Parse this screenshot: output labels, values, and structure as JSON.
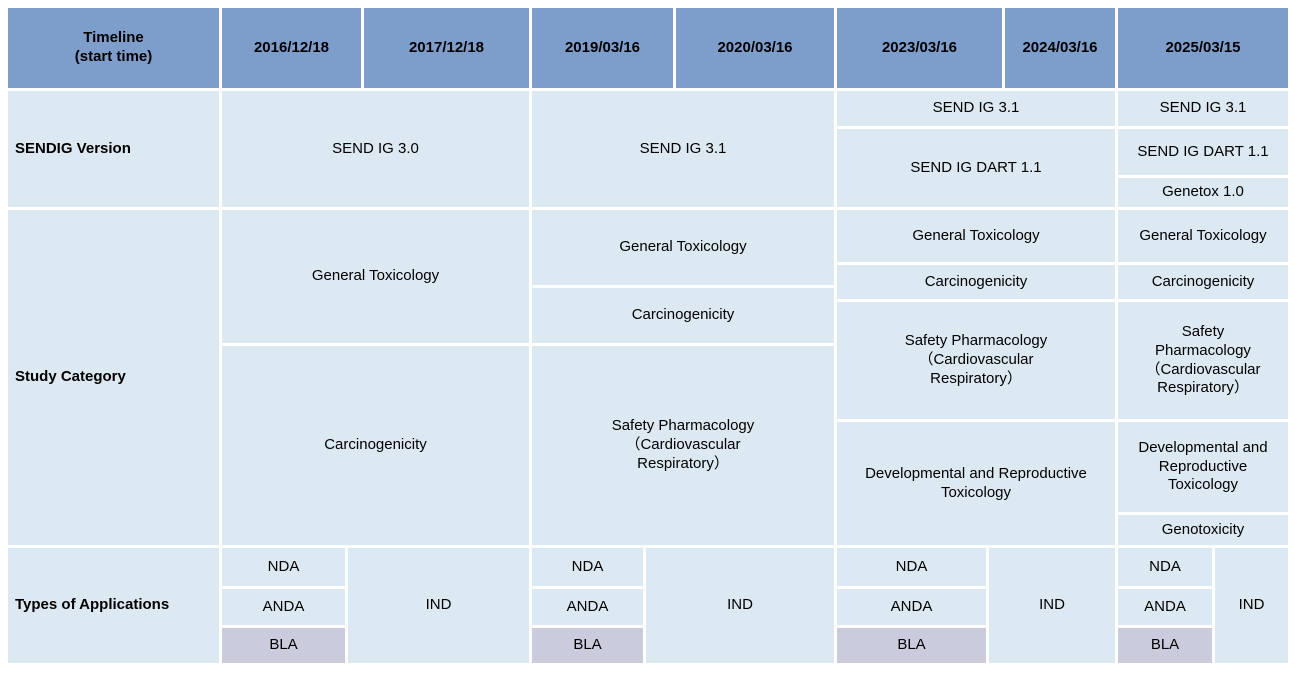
{
  "header": {
    "corner": "Timeline\n(start time)",
    "dates": [
      "2016/12/18",
      "2017/12/18",
      "2019/03/16",
      "2020/03/16",
      "2023/03/16",
      "2024/03/16",
      "2025/03/15"
    ]
  },
  "sendig_version": {
    "label": "SENDIG Version",
    "g2016_2017": "SEND IG 3.0",
    "g2019_2020": "SEND IG 3.1",
    "g2023_2024": {
      "row1": "SEND IG 3.1",
      "row2": "SEND IG DART 1.1"
    },
    "g2025": {
      "row1": "SEND IG 3.1",
      "row2": "SEND IG DART 1.1",
      "row3": "Genetox 1.0"
    }
  },
  "study_category": {
    "label": "Study Category",
    "g2016_2017": {
      "row1": "General Toxicology",
      "row2": "Carcinogenicity"
    },
    "g2019_2020": {
      "row1": "General Toxicology",
      "row2": "Carcinogenicity",
      "row3": "Safety Pharmacology\n（Cardiovascular\nRespiratory）"
    },
    "g2023_2024": {
      "row1": "General Toxicology",
      "row2": "Carcinogenicity",
      "row3": "Safety Pharmacology\n（Cardiovascular\nRespiratory）",
      "row4": "Developmental and Reproductive\nToxicology"
    },
    "g2025": {
      "row1": "General Toxicology",
      "row2": "Carcinogenicity",
      "row3": "Safety\nPharmacology\n（Cardiovascular\nRespiratory）",
      "row4": "Developmental and\nReproductive\nToxicology",
      "row5": "Genotoxicity"
    }
  },
  "types_of_applications": {
    "label": "Types of Applications",
    "nda": "NDA",
    "anda": "ANDA",
    "bla": "BLA",
    "ind": "IND"
  },
  "colors": {
    "header_bg": "#7d9dcb",
    "cell_bg": "#dce9f2",
    "bla_bg": "#cbcbde",
    "text": "#000000"
  }
}
